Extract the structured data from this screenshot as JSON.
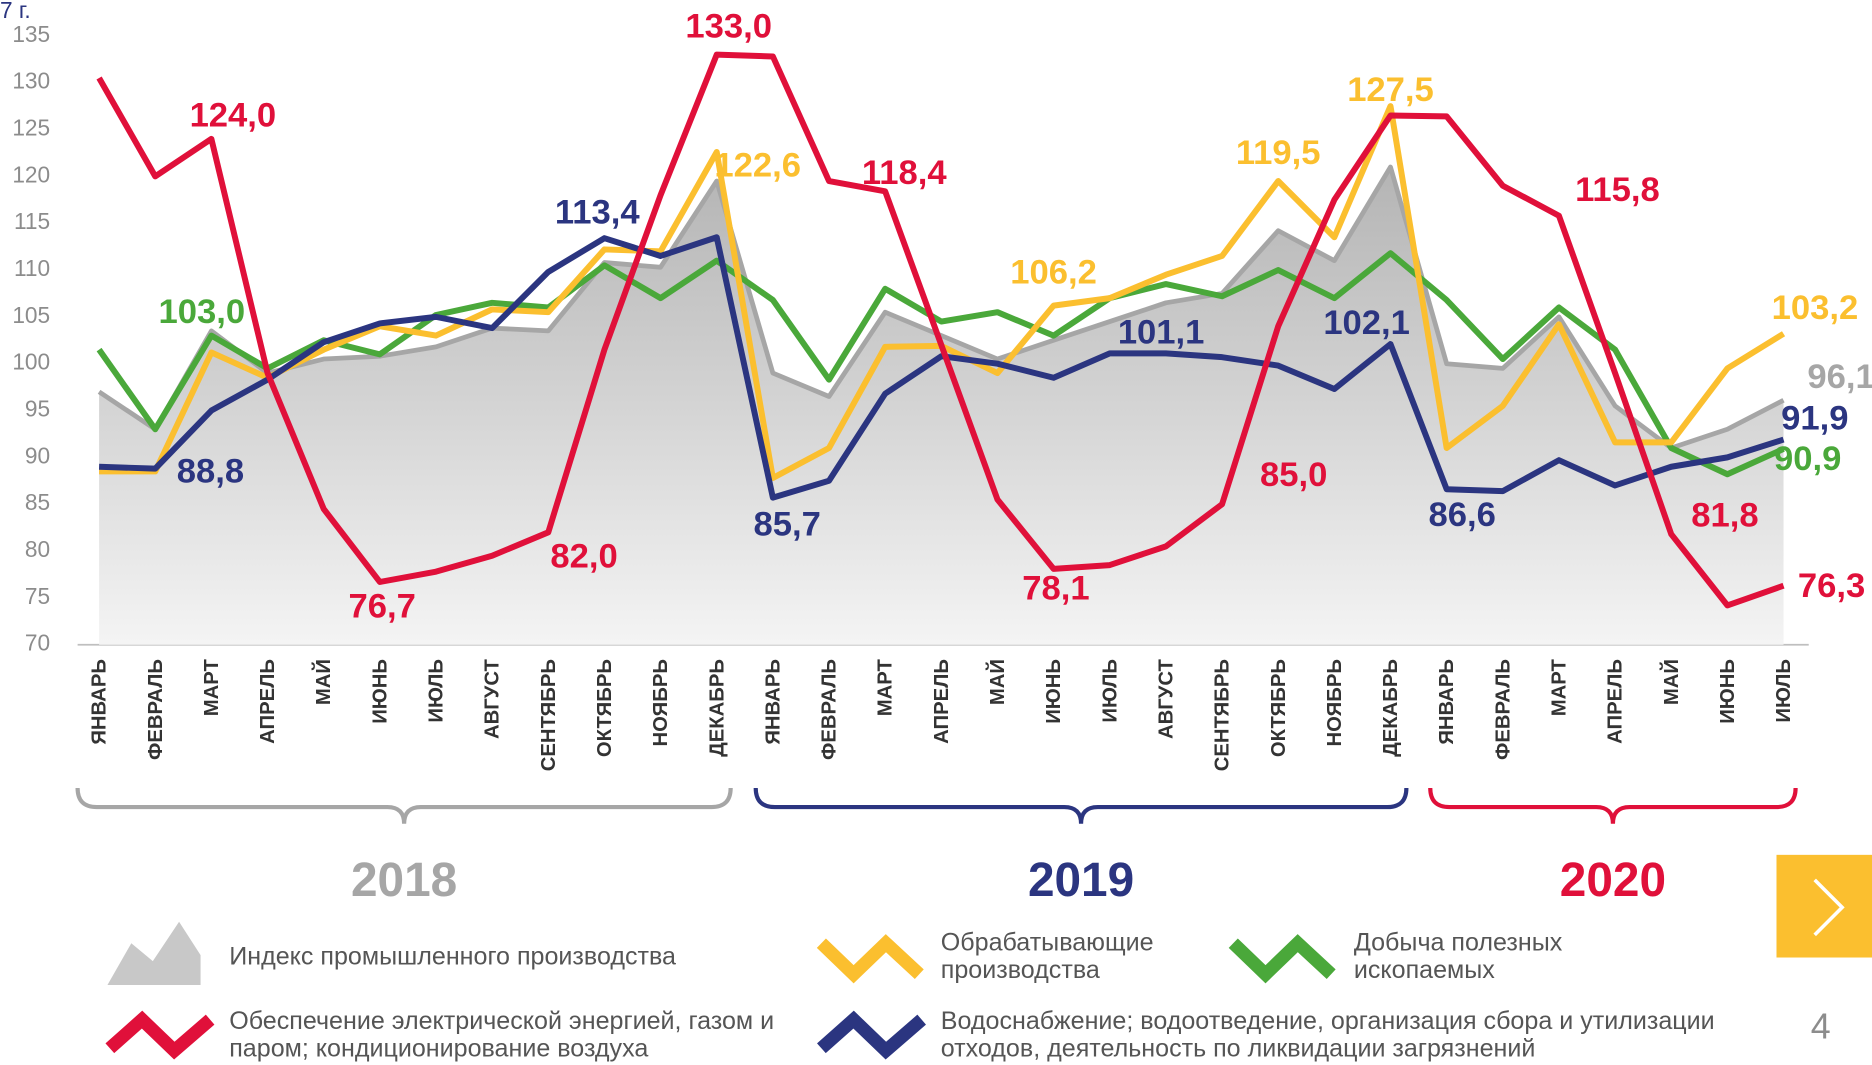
{
  "chart_data": {
    "type": "line",
    "y_label": "7 г.",
    "categories": [
      "ЯНВАРЬ",
      "ФЕВРАЛЬ",
      "МАРТ",
      "АПРЕЛЬ",
      "МАЙ",
      "ИЮНЬ",
      "ИЮЛЬ",
      "АВГУСТ",
      "СЕНТЯБРЬ",
      "ОКТЯБРЬ",
      "НОЯБРЬ",
      "ДЕКАБРЬ",
      "ЯНВАРЬ",
      "ФЕВРАЛЬ",
      "МАРТ",
      "АПРЕЛЬ",
      "МАЙ",
      "ИЮНЬ",
      "ИЮЛЬ",
      "АВГУСТ",
      "СЕНТЯБРЬ",
      "ОКТЯБРЬ",
      "НОЯБРЬ",
      "ДЕКАБРЬ",
      "ЯНВАРЬ",
      "ФЕВРАЛЬ",
      "МАРТ",
      "АПРЕЛЬ",
      "МАЙ",
      "ИЮНЬ",
      "ИЮЛЬ"
    ],
    "groups": [
      {
        "label": "2018",
        "color": "#a6a6a6"
      },
      {
        "label": "2019",
        "color": "#2b3580"
      },
      {
        "label": "2020",
        "color": "#e0103a"
      }
    ],
    "ylim": [
      70,
      135
    ],
    "yticks": [
      70,
      75,
      80,
      85,
      90,
      95,
      100,
      105,
      110,
      115,
      120,
      125,
      130,
      135
    ],
    "series": [
      {
        "name": "Индекс промышленного производства",
        "color": "#a6a6a6",
        "area": true,
        "values": [
          97,
          93,
          103.5,
          99,
          100.5,
          100.8,
          101.8,
          103.8,
          103.5,
          110.8,
          110.3,
          119.5,
          99,
          96.5,
          105.5,
          103,
          100.5,
          102.5,
          104.5,
          106.5,
          107.5,
          114.2,
          111,
          121,
          100,
          99.5,
          105,
          95.5,
          91,
          93,
          96.1
        ],
        "value_labels": [
          null,
          null,
          null,
          null,
          null,
          null,
          null,
          null,
          null,
          null,
          null,
          null,
          null,
          null,
          null,
          null,
          null,
          null,
          null,
          null,
          null,
          null,
          null,
          null,
          null,
          null,
          null,
          null,
          null,
          null,
          "96,1"
        ]
      },
      {
        "name": "Добыча полезных ископаемых",
        "color": "#4aa83a",
        "values": [
          101.5,
          93,
          103.0,
          99.5,
          102.5,
          101,
          105.2,
          106.5,
          106,
          110.5,
          107,
          111,
          106.8,
          98.3,
          108,
          104.5,
          105.5,
          103,
          107,
          108.5,
          107.2,
          110,
          107,
          111.8,
          106.8,
          100.5,
          106,
          101.5,
          91,
          88.2,
          90.9
        ],
        "value_labels": [
          null,
          null,
          "103,0",
          null,
          null,
          null,
          null,
          null,
          null,
          null,
          null,
          null,
          null,
          null,
          null,
          null,
          null,
          null,
          null,
          null,
          null,
          null,
          null,
          null,
          null,
          null,
          null,
          null,
          null,
          null,
          "90,9"
        ]
      },
      {
        "name": "Обрабатывающие производства",
        "color": "#fbbf2f",
        "values": [
          88.5,
          88.5,
          101.2,
          98.5,
          101.5,
          104,
          103,
          105.8,
          105.5,
          112.2,
          112,
          122.6,
          87.8,
          91,
          101.8,
          101.9,
          99,
          106.2,
          107,
          109.5,
          111.5,
          119.5,
          113.5,
          127.5,
          91,
          95.5,
          104.2,
          91.6,
          91.6,
          99.5,
          103.2
        ],
        "value_labels": [
          null,
          null,
          null,
          null,
          null,
          null,
          null,
          null,
          null,
          null,
          null,
          "122,6",
          null,
          null,
          null,
          null,
          null,
          "106,2",
          null,
          null,
          null,
          "119,5",
          null,
          "127,5",
          null,
          null,
          null,
          null,
          null,
          null,
          "103,2"
        ]
      },
      {
        "name": "Водоснабжение; водоотведение, организация сбора и утилизации отходов, деятельность по ликвидации загрязнений",
        "color": "#2b3580",
        "values": [
          89,
          88.8,
          95,
          98.3,
          102.3,
          104.3,
          105,
          103.8,
          109.8,
          113.4,
          111.5,
          113.5,
          85.7,
          87.5,
          96.8,
          100.8,
          100,
          98.5,
          101.1,
          101.1,
          100.7,
          99.8,
          97.3,
          102.1,
          86.6,
          86.4,
          89.7,
          87,
          89,
          90,
          91.9
        ],
        "value_labels": [
          null,
          "88,8",
          null,
          null,
          null,
          null,
          null,
          null,
          null,
          "113,4",
          null,
          null,
          "85,7",
          null,
          null,
          null,
          null,
          null,
          null,
          "101,1",
          null,
          null,
          null,
          "102,1",
          "86,6",
          null,
          null,
          null,
          null,
          null,
          "91,9"
        ]
      },
      {
        "name": "Обеспечение электрической энергией, газом и паром; кондиционирование воздуха",
        "color": "#e0103a",
        "values": [
          130.5,
          120,
          124.0,
          99,
          84.5,
          76.7,
          77.8,
          79.5,
          82.0,
          101.5,
          118,
          133.0,
          132.8,
          119.5,
          118.4,
          102,
          85.5,
          78.1,
          78.5,
          80.5,
          85.0,
          104,
          117.5,
          126.5,
          126.4,
          119,
          115.8,
          99,
          81.8,
          74.2,
          76.3
        ],
        "value_labels": [
          null,
          null,
          "124,0",
          null,
          null,
          "76,7",
          null,
          null,
          "82,0",
          null,
          null,
          "133,0",
          null,
          null,
          "118,4",
          null,
          null,
          "78,1",
          null,
          null,
          "85,0",
          null,
          null,
          null,
          null,
          null,
          "115,8",
          null,
          "81,8",
          null,
          "76,3"
        ]
      }
    ],
    "page_number": "4"
  }
}
